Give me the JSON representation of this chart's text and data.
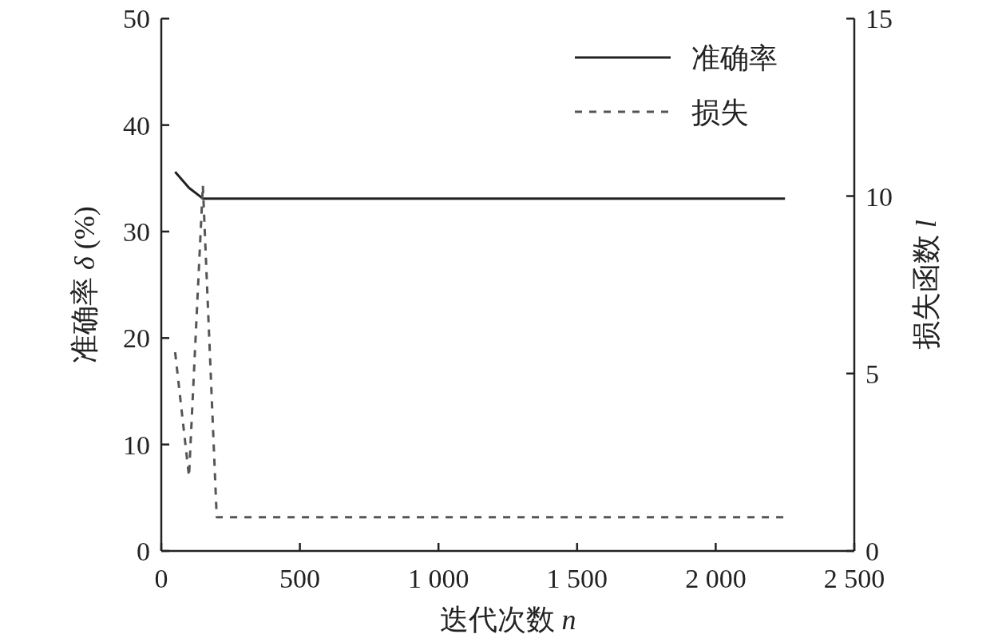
{
  "chart_data": {
    "type": "line",
    "xlabel": "迭代次数 *n*",
    "ylabel": "准确率 *δ* (%)",
    "y2label": "损失函数 *l*",
    "x": [
      50,
      100,
      150,
      200,
      2250
    ],
    "series": [
      {
        "name": "准确率",
        "color": "#222222",
        "values": [
          35.6,
          34.1,
          33.1,
          33.1,
          33.1
        ],
        "line_style": "solid"
      },
      {
        "name": "损失",
        "color": "#555555",
        "values": [
          5.6,
          2.1,
          10.3,
          0.95,
          0.95
        ],
        "axis": "y2",
        "line_style": "dashed"
      }
    ],
    "xlim": [
      0,
      2500
    ],
    "ylim": [
      0,
      50
    ],
    "y2lim": [
      0,
      15
    ],
    "xticks": [
      0,
      500,
      {
        "value": 1000,
        "label": "1 000"
      },
      {
        "value": 1500,
        "label": "1 500"
      },
      {
        "value": 2000,
        "label": "2 000"
      },
      {
        "value": 2500,
        "label": "2 500"
      }
    ],
    "yticks": [
      0,
      10,
      20,
      30,
      40,
      50
    ],
    "y2ticks": [
      0,
      5,
      10,
      15
    ],
    "legend": "top right"
  }
}
